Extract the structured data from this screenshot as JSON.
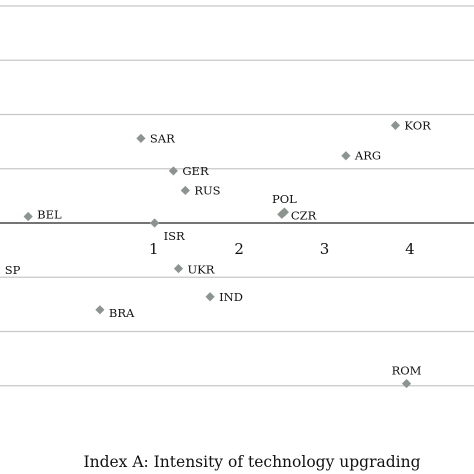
{
  "chart_data": {
    "type": "scatter",
    "title": "",
    "xlabel": "Index A: Intensity of technology upgrading",
    "ylabel": "",
    "xlim": [
      -0.8,
      4.75
    ],
    "ylim": [
      -1.0,
      1.0
    ],
    "x_ticks": [
      1,
      2,
      3,
      4
    ],
    "x_tick_labels": [
      "1",
      "2",
      "3",
      "4"
    ],
    "y_gridlines": [
      1.0,
      0.75,
      0.5,
      0.25,
      -0.25,
      -0.5,
      -0.75
    ],
    "grid": "horizontal",
    "marker": "diamond",
    "marker_color": "#8c9490",
    "points": [
      {
        "label": "KOR",
        "x": 3.83,
        "y": 0.45,
        "label_side": "right",
        "label_dy": 0
      },
      {
        "label": "SAR",
        "x": 0.85,
        "y": 0.39,
        "label_side": "right",
        "label_dy": 0
      },
      {
        "label": "ARG",
        "x": 3.25,
        "y": 0.31,
        "label_side": "right",
        "label_dy": 0
      },
      {
        "label": "GER",
        "x": 1.23,
        "y": 0.24,
        "label_side": "right",
        "label_dy": 0
      },
      {
        "label": "RUS",
        "x": 1.37,
        "y": 0.15,
        "label_side": "right",
        "label_dy": 0
      },
      {
        "label": "POL",
        "x": 2.53,
        "y": 0.05,
        "label_side": "above",
        "label_dy": 0
      },
      {
        "label": "CZR",
        "x": 2.5,
        "y": 0.04,
        "label_side": "right",
        "label_dy": 1
      },
      {
        "label": "BEL",
        "x": -0.47,
        "y": 0.03,
        "label_side": "right",
        "label_dy": -2
      },
      {
        "label": "ISR",
        "x": 1.01,
        "y": 0.0,
        "label_side": "right",
        "label_dy": 13
      },
      {
        "label": "UKR",
        "x": 1.29,
        "y": -0.21,
        "label_side": "right",
        "label_dy": 1
      },
      {
        "label": "IND",
        "x": 1.66,
        "y": -0.34,
        "label_side": "right",
        "label_dy": 0
      },
      {
        "label": "BRA",
        "x": 0.37,
        "y": -0.4,
        "label_side": "right",
        "label_dy": 3
      },
      {
        "label": "ROM",
        "x": 3.96,
        "y": -0.74,
        "label_side": "above",
        "label_dy": 0
      },
      {
        "label": "SP",
        "x": -0.85,
        "y": -0.23,
        "label_side": "right",
        "label_dy": -3
      }
    ]
  }
}
